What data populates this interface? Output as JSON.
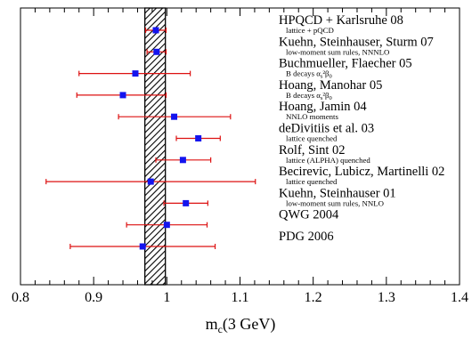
{
  "chart_data": {
    "type": "scatter",
    "subtype": "horizontal-error-bar-comparison",
    "xlabel_main": "m",
    "xlabel_sub": "c",
    "xlabel_rest": "(3 GeV)",
    "xlim": [
      0.8,
      1.4
    ],
    "x_ticks": [
      "0.8",
      "0.9",
      "1",
      "1.1",
      "1.2",
      "1.3",
      "1.4"
    ],
    "grid": false,
    "band": {
      "from": 0.97,
      "to": 0.998,
      "pattern": "diagonal-hatch",
      "color": "#000000"
    },
    "marker_color": "#1414ee",
    "errorbar_color": "#dd1111",
    "points": [
      {
        "name": "HPQCD + Karlsruhe 08",
        "note": "lattice + pQCD",
        "x": 0.985,
        "xmin": 0.971,
        "xmax": 0.999
      },
      {
        "name": "Kuehn, Steinhauser, Sturm 07",
        "note": "low-moment sum rules, NNNLO",
        "x": 0.986,
        "xmin": 0.973,
        "xmax": 0.999
      },
      {
        "name": "Buchmueller, Flaecher 05",
        "note_parts": [
          "B decays α",
          "s",
          "²β",
          "0"
        ],
        "x": 0.957,
        "xmin": 0.88,
        "xmax": 1.032
      },
      {
        "name": "Hoang, Manohar 05",
        "note_parts": [
          "B decays α",
          "s",
          "²β",
          "0"
        ],
        "x": 0.94,
        "xmin": 0.877,
        "xmax": 0.999
      },
      {
        "name": "Hoang, Jamin 04",
        "note": "NNLO moments",
        "x": 1.01,
        "xmin": 0.934,
        "xmax": 1.087
      },
      {
        "name": "deDivitiis et al. 03",
        "note": "lattice quenched",
        "x": 1.043,
        "xmin": 1.013,
        "xmax": 1.073
      },
      {
        "name": "Rolf, Sint 02",
        "note": "lattice (ALPHA) quenched",
        "x": 1.022,
        "xmin": 0.985,
        "xmax": 1.06
      },
      {
        "name": "Becirevic, Lubicz, Martinelli 02",
        "note": "lattice quenched",
        "x": 0.978,
        "xmin": 0.835,
        "xmax": 1.121
      },
      {
        "name": "Kuehn, Steinhauser 01",
        "note": "low-moment sum rules, NNLO",
        "x": 1.026,
        "xmin": 0.996,
        "xmax": 1.056
      },
      {
        "name": "QWG 2004",
        "x": 1.0,
        "xmin": 0.945,
        "xmax": 1.055
      },
      {
        "name": "PDG 2006",
        "x": 0.967,
        "xmin": 0.868,
        "xmax": 1.066
      }
    ]
  }
}
